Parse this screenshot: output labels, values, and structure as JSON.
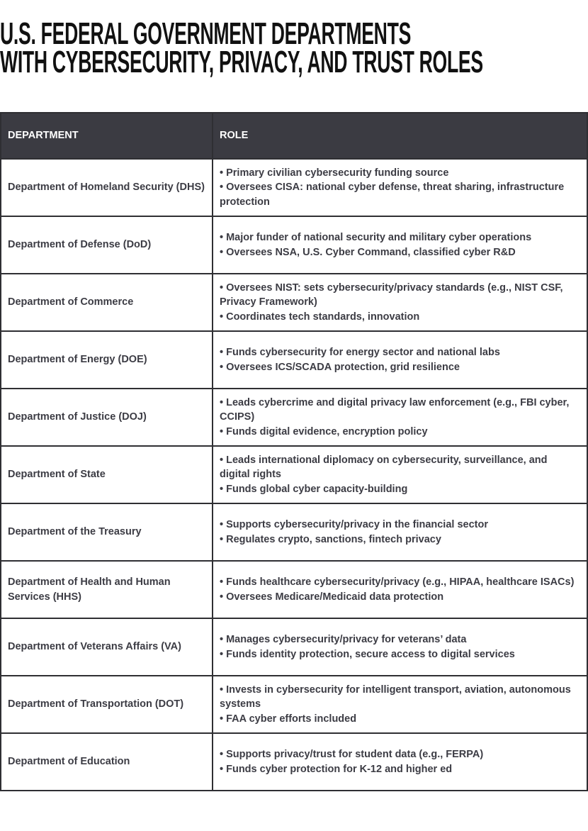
{
  "title": [
    "U.S. FEDERAL GOVERNMENT DEPARTMENTS",
    "WITH CYBERSECURITY, PRIVACY, AND TRUST ROLES"
  ],
  "table": {
    "header": [
      "DEPARTMENT",
      "ROLE"
    ],
    "rows": [
      {
        "department": "Department of Homeland Security (DHS)",
        "roles": [
          "• Primary civilian cybersecurity funding source",
          "• Oversees CISA: national cyber defense, threat sharing, infrastructure protection"
        ]
      },
      {
        "department": "Department of Defense (DoD)",
        "roles": [
          "• Major funder of national security and military cyber operations",
          "• Oversees NSA, U.S. Cyber Command, classified cyber R&D"
        ]
      },
      {
        "department": "Department of Commerce",
        "roles": [
          "• Oversees NIST: sets cybersecurity/privacy standards (e.g., NIST CSF, Privacy Framework)",
          "• Coordinates tech standards, innovation"
        ]
      },
      {
        "department": "Department of Energy (DOE)",
        "roles": [
          "• Funds cybersecurity for energy sector and national labs",
          "• Oversees ICS/SCADA protection, grid resilience"
        ]
      },
      {
        "department": "Department of Justice (DOJ)",
        "roles": [
          "• Leads cybercrime and digital privacy law enforcement (e.g., FBI cyber, CCIPS)",
          "• Funds digital evidence, encryption policy"
        ]
      },
      {
        "department": "Department of State",
        "roles": [
          "• Leads international diplomacy on cybersecurity, surveillance, and digital rights",
          "• Funds global cyber capacity-building"
        ]
      },
      {
        "department": "Department of the Treasury",
        "roles": [
          "• Supports cybersecurity/privacy in the financial sector",
          "• Regulates crypto, sanctions, fintech privacy"
        ]
      },
      {
        "department": "Department of Health and Human Services (HHS)",
        "roles": [
          "• Funds healthcare cybersecurity/privacy (e.g., HIPAA, healthcare ISACs)",
          "• Oversees Medicare/Medicaid data protection"
        ]
      },
      {
        "department": "Department of Veterans Affairs (VA)",
        "roles": [
          "• Manages cybersecurity/privacy for veterans’ data",
          "• Funds identity protection, secure access to digital services"
        ]
      },
      {
        "department": "Department of Transportation (DOT)",
        "roles": [
          "• Invests in cybersecurity for intelligent transport, aviation, autonomous systems",
          "• FAA cyber efforts included"
        ]
      },
      {
        "department": "Department of Education",
        "roles": [
          "• Supports privacy/trust for student data (e.g., FERPA)",
          "• Funds cyber protection for K-12 and higher ed"
        ]
      }
    ]
  }
}
